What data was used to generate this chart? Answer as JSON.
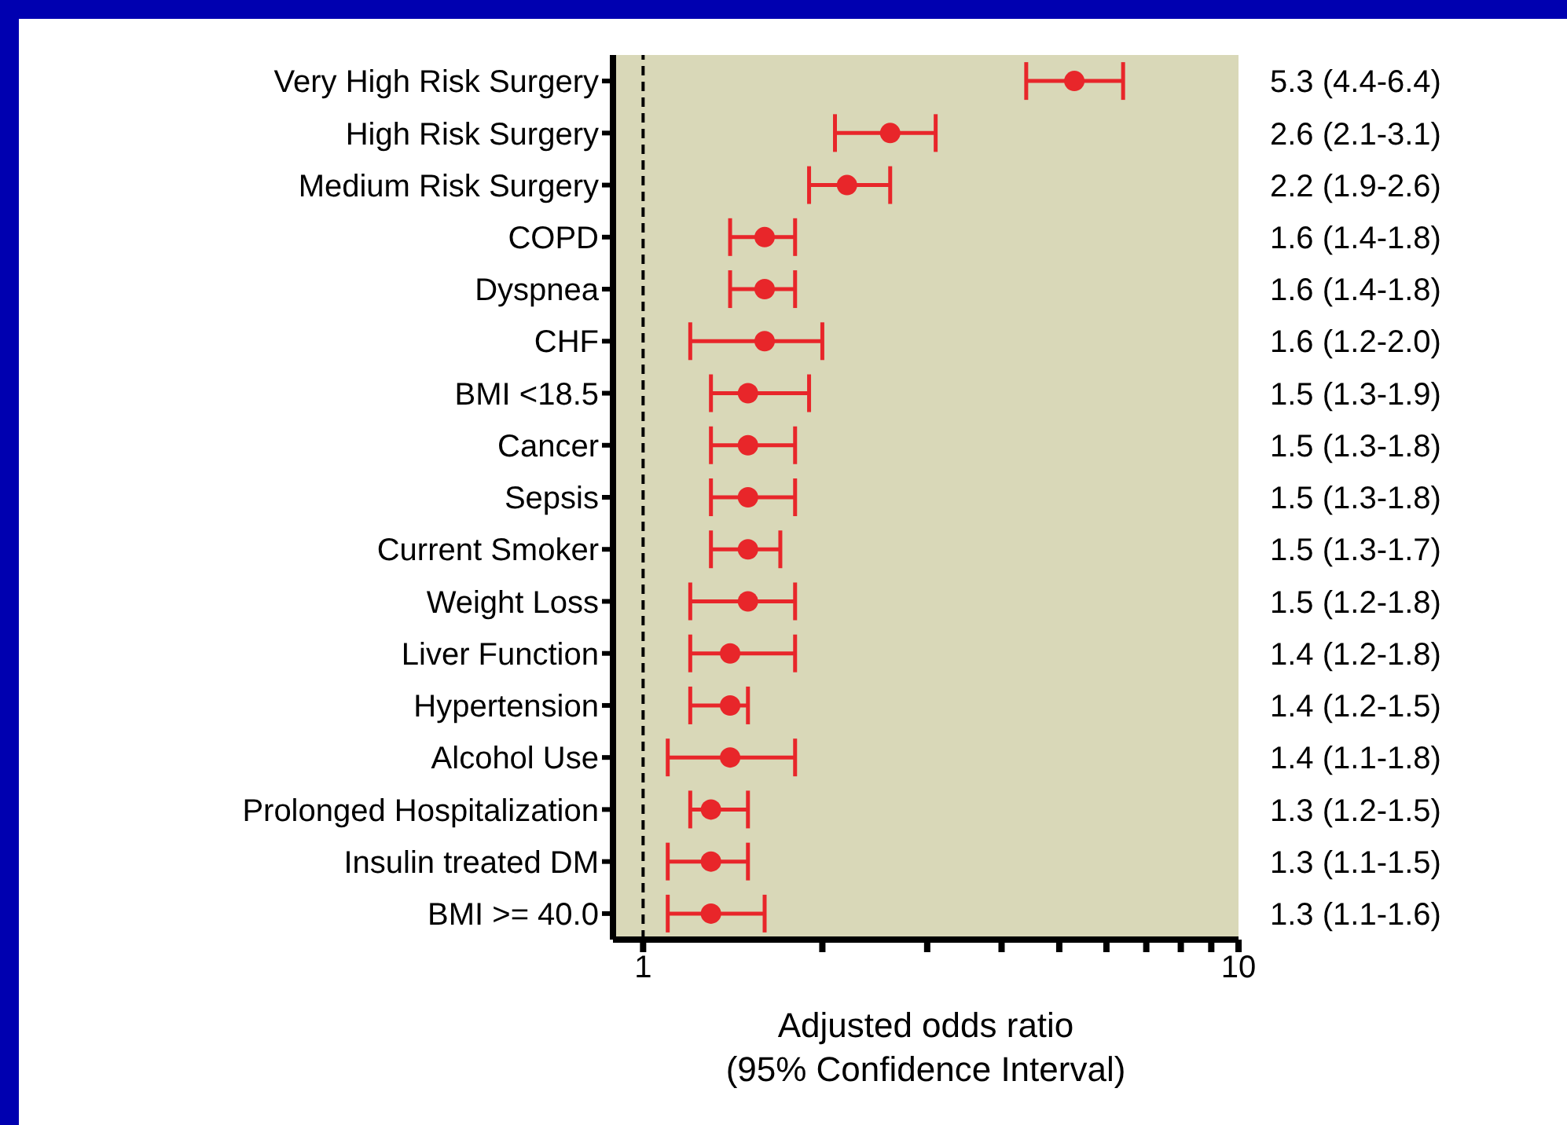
{
  "chart_data": {
    "type": "scatter",
    "orientation": "horizontal",
    "categories": [
      "Very High Risk Surgery",
      "High Risk Surgery",
      "Medium Risk Surgery",
      "COPD",
      "Dyspnea",
      "CHF",
      "BMI <18.5",
      "Cancer",
      "Sepsis",
      "Current Smoker",
      "Weight Loss",
      "Liver Function",
      "Hypertension",
      "Alcohol Use",
      "Prolonged Hospitalization",
      "Insulin treated DM",
      "BMI >= 40.0"
    ],
    "values": [
      5.3,
      2.6,
      2.2,
      1.6,
      1.6,
      1.6,
      1.5,
      1.5,
      1.5,
      1.5,
      1.5,
      1.4,
      1.4,
      1.4,
      1.3,
      1.3,
      1.3
    ],
    "errors": [
      [
        4.4,
        6.4
      ],
      [
        2.1,
        3.1
      ],
      [
        1.9,
        2.6
      ],
      [
        1.4,
        1.8
      ],
      [
        1.4,
        1.8
      ],
      [
        1.2,
        2.0
      ],
      [
        1.3,
        1.9
      ],
      [
        1.3,
        1.8
      ],
      [
        1.3,
        1.8
      ],
      [
        1.3,
        1.7
      ],
      [
        1.2,
        1.8
      ],
      [
        1.2,
        1.8
      ],
      [
        1.2,
        1.5
      ],
      [
        1.1,
        1.8
      ],
      [
        1.2,
        1.5
      ],
      [
        1.1,
        1.5
      ],
      [
        1.1,
        1.6
      ]
    ],
    "value_labels": [
      "5.3 (4.4-6.4)",
      "2.6 (2.1-3.1)",
      "2.2 (1.9-2.6)",
      "1.6 (1.4-1.8)",
      "1.6 (1.4-1.8)",
      "1.6 (1.2-2.0)",
      "1.5 (1.3-1.9)",
      "1.5 (1.3-1.8)",
      "1.5 (1.3-1.8)",
      "1.5 (1.3-1.7)",
      "1.5 (1.2-1.8)",
      "1.4 (1.2-1.8)",
      "1.4 (1.2-1.5)",
      "1.4 (1.1-1.8)",
      "1.3 (1.2-1.5)",
      "1.3 (1.1-1.5)",
      "1.3 (1.1-1.6)"
    ],
    "color": "#e8262a",
    "marker": "circle",
    "log": "x",
    "grid": false,
    "xlabel": "Adjusted odds ratio\n(95% Confidence Interval)",
    "xlim": [
      0.89,
      10
    ],
    "xticks": [
      1,
      {
        "value": 2,
        "label": null
      },
      {
        "value": 3,
        "label": null
      },
      {
        "value": 4,
        "label": null
      },
      {
        "value": 5,
        "label": null
      },
      {
        "value": 6,
        "label": null
      },
      {
        "value": 7,
        "label": null
      },
      {
        "value": 8,
        "label": null
      },
      {
        "value": 9,
        "label": null
      },
      10
    ],
    "ref_lines": [
      {
        "axis": "x",
        "value": 1,
        "label": null,
        "line_style": "dashed",
        "color": "#000000"
      }
    ]
  }
}
